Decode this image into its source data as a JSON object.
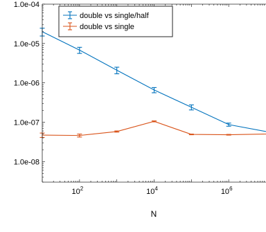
{
  "chart_data": {
    "type": "line",
    "title": "",
    "xlabel": "N",
    "ylabel": "",
    "xscale": "log",
    "yscale": "log",
    "xlim": [
      10,
      10000000
    ],
    "ylim": [
      3e-09,
      0.0001
    ],
    "grid": false,
    "legend_location": "top-left",
    "x_ticks": [
      {
        "value": 100,
        "base": "10",
        "exp": "2"
      },
      {
        "value": 10000,
        "base": "10",
        "exp": "4"
      },
      {
        "value": 1000000,
        "base": "10",
        "exp": "6"
      }
    ],
    "y_ticks": [
      {
        "value": 0.0001,
        "label": "1.0e-04"
      },
      {
        "value": 1e-05,
        "label": "1.0e-05"
      },
      {
        "value": 1e-06,
        "label": "1.0e-06"
      },
      {
        "value": 1e-07,
        "label": "1.0e-07"
      },
      {
        "value": 1e-08,
        "label": "1.0e-08"
      }
    ],
    "x": [
      10,
      100,
      1000,
      10000,
      100000,
      1000000,
      10000000
    ],
    "series": [
      {
        "name": "double vs single/half",
        "color": "#0072BD",
        "values": [
          2e-05,
          6.8e-06,
          2.1e-06,
          6.6e-07,
          2.4e-07,
          8.7e-08,
          5.8e-08
        ],
        "errors": [
          4.5e-06,
          1.2e-06,
          4e-07,
          1e-07,
          3.5e-08,
          8e-09,
          0
        ]
      },
      {
        "name": "double vs single",
        "color": "#D95319",
        "values": [
          4.7e-08,
          4.6e-08,
          5.8e-08,
          1.05e-07,
          4.9e-08,
          4.8e-08,
          5e-08
        ],
        "errors": [
          6e-09,
          4e-09,
          2e-09,
          3e-09,
          1e-09,
          1e-09,
          0
        ]
      }
    ]
  }
}
